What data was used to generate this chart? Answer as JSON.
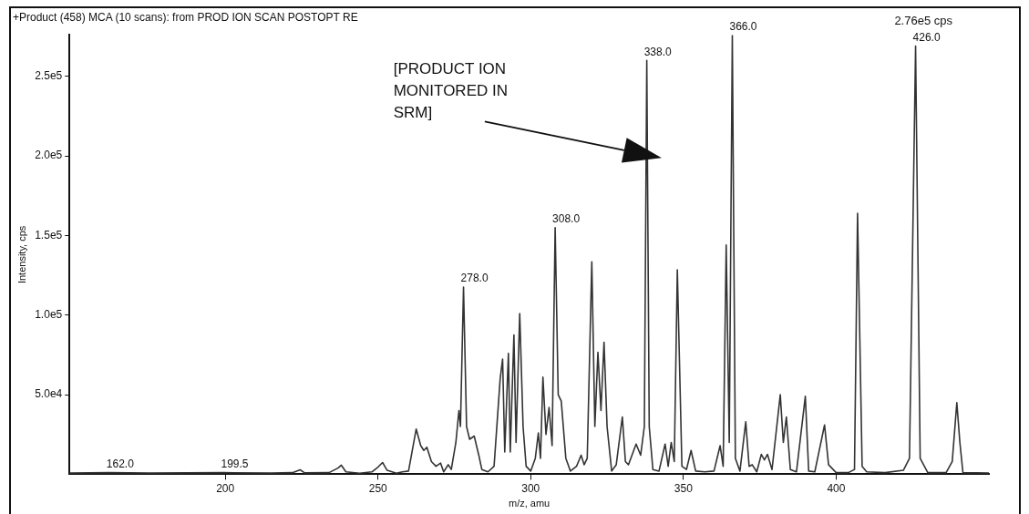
{
  "chart_data": {
    "type": "line",
    "title": "+Product (458) MCA (10 scans): from PROD ION SCAN POSTOPT RE",
    "xlabel": "m/z, amu",
    "ylabel": "Intensity, cps",
    "xlim": [
      149,
      450
    ],
    "xticks": [
      200,
      250,
      300,
      350,
      400
    ],
    "ylim": [
      0,
      276000
    ],
    "yticks": [
      {
        "value": 50000,
        "label": "5.0e4"
      },
      {
        "value": 100000,
        "label": "1.0e5"
      },
      {
        "value": 150000,
        "label": "1.5e5"
      },
      {
        "value": 200000,
        "label": "2.0e5"
      },
      {
        "value": 250000,
        "label": "2.5e5"
      }
    ],
    "grid": false,
    "legend": false,
    "marker": "none",
    "line_style": "solid",
    "series": [
      {
        "color": "#333333",
        "x": [
          149,
          162,
          175,
          199.5,
          215,
          222,
          224.5,
          226,
          234,
          237,
          238,
          239.5,
          244,
          248,
          250,
          251.5,
          253,
          256,
          258,
          260,
          262.5,
          264,
          265,
          266,
          267.5,
          269,
          270.5,
          271.5,
          273,
          274,
          275.5,
          276.5,
          277,
          278,
          279,
          280,
          281.5,
          283,
          284,
          286,
          288,
          290,
          290.8,
          291.5,
          292.7,
          293.3,
          294.5,
          295.2,
          296.4,
          297.5,
          298.5,
          300,
          301.5,
          302.5,
          303.2,
          304,
          305,
          306,
          307,
          308,
          309,
          310,
          311.5,
          313,
          315,
          316.5,
          317.5,
          318.5,
          320,
          321,
          322,
          323,
          324,
          325,
          326.5,
          328,
          330,
          331,
          332,
          334.5,
          336,
          337.2,
          338,
          338.8,
          340,
          342,
          344,
          345,
          346,
          347,
          348,
          349.5,
          351,
          352.5,
          354,
          357,
          360,
          362,
          363,
          364,
          365,
          366,
          367,
          368.5,
          370.4,
          371.5,
          372.5,
          374,
          375.5,
          376.5,
          377.5,
          379,
          381.7,
          382.7,
          383.7,
          385,
          387,
          389.9,
          391,
          393,
          396.2,
          397.5,
          400,
          404,
          406,
          407,
          408.5,
          410,
          416,
          422,
          424,
          426,
          427.5,
          430,
          436,
          438,
          439.5,
          440.5,
          441.5,
          450
        ],
        "values": [
          800,
          1000,
          800,
          1000,
          800,
          1000,
          2800,
          900,
          1000,
          4000,
          5700,
          1500,
          700,
          1500,
          4500,
          7400,
          2500,
          600,
          1500,
          2000,
          28400,
          18000,
          15000,
          17000,
          8000,
          5000,
          7000,
          1500,
          6000,
          3000,
          20000,
          40000,
          30000,
          117600,
          30000,
          22000,
          24000,
          12000,
          3000,
          1500,
          5000,
          60000,
          72400,
          14000,
          76000,
          14000,
          87500,
          20000,
          101000,
          30000,
          5000,
          2000,
          10000,
          26000,
          10000,
          61000,
          25000,
          42000,
          18000,
          155000,
          50000,
          46000,
          10000,
          2000,
          5000,
          12000,
          6000,
          10000,
          133500,
          30000,
          76700,
          40000,
          83000,
          30000,
          2000,
          6000,
          36000,
          8000,
          6000,
          19000,
          12000,
          30000,
          260000,
          30000,
          3000,
          2000,
          19000,
          5000,
          20000,
          8000,
          128400,
          5000,
          3000,
          15000,
          2000,
          1500,
          2000,
          18000,
          5000,
          144000,
          20000,
          276000,
          10000,
          2000,
          33000,
          5000,
          6000,
          1500,
          12500,
          9000,
          12500,
          3000,
          50000,
          20000,
          36000,
          3000,
          1500,
          49000,
          2000,
          1500,
          31000,
          6000,
          1000,
          1000,
          3000,
          164000,
          5000,
          1500,
          1000,
          2500,
          10000,
          269000,
          10000,
          1000,
          1000,
          8000,
          45000,
          20000,
          1000,
          800
        ]
      }
    ],
    "annotations": [
      {
        "text": "162.0",
        "x": 162,
        "y": 1000
      },
      {
        "text": "199.5",
        "x": 199.5,
        "y": 1000
      },
      {
        "text": "278.0",
        "x": 278,
        "y": 117600
      },
      {
        "text": "308.0",
        "x": 308,
        "y": 155000
      },
      {
        "text": "338.0",
        "x": 338,
        "y": 260000
      },
      {
        "text": "366.0",
        "x": 366,
        "y": 276000
      },
      {
        "text": "426.0",
        "x": 426,
        "y": 269000
      },
      "2.76e5 cps",
      "[PRODUCT ION MONITORED IN SRM]"
    ]
  }
}
